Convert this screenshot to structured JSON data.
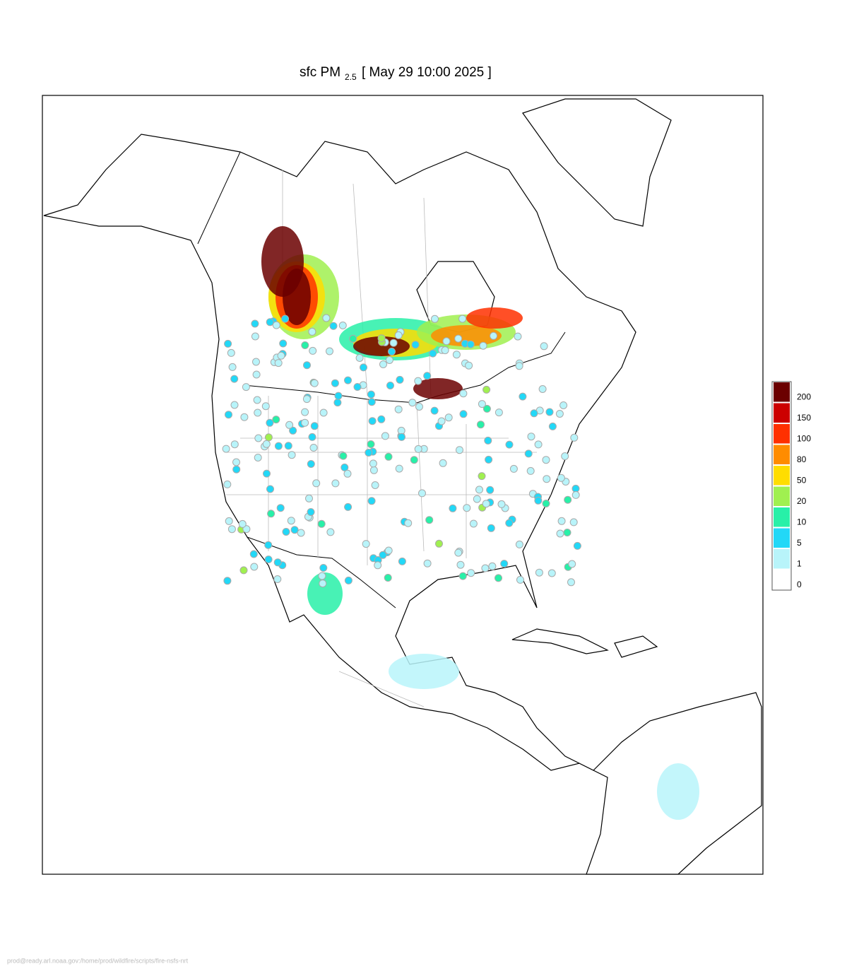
{
  "header": {
    "title_main": "sfc PM",
    "title_sub": "2.5",
    "title_date": "[ May 29 10:00 2025 ]"
  },
  "colorbar": {
    "ticks": [
      0,
      1,
      5,
      10,
      20,
      50,
      80,
      100,
      150,
      200
    ],
    "colors": [
      "#ffffff",
      "#b8f4fa",
      "#22d8f7",
      "#28f0a8",
      "#a0f050",
      "#ffdd00",
      "#ff8c00",
      "#ff3000",
      "#cc0000",
      "#6b0000"
    ]
  },
  "footer": "prod@ready.arl.noaa.gov:/home/prod/wildfire/scripts/fire-nsfs-nrt"
}
